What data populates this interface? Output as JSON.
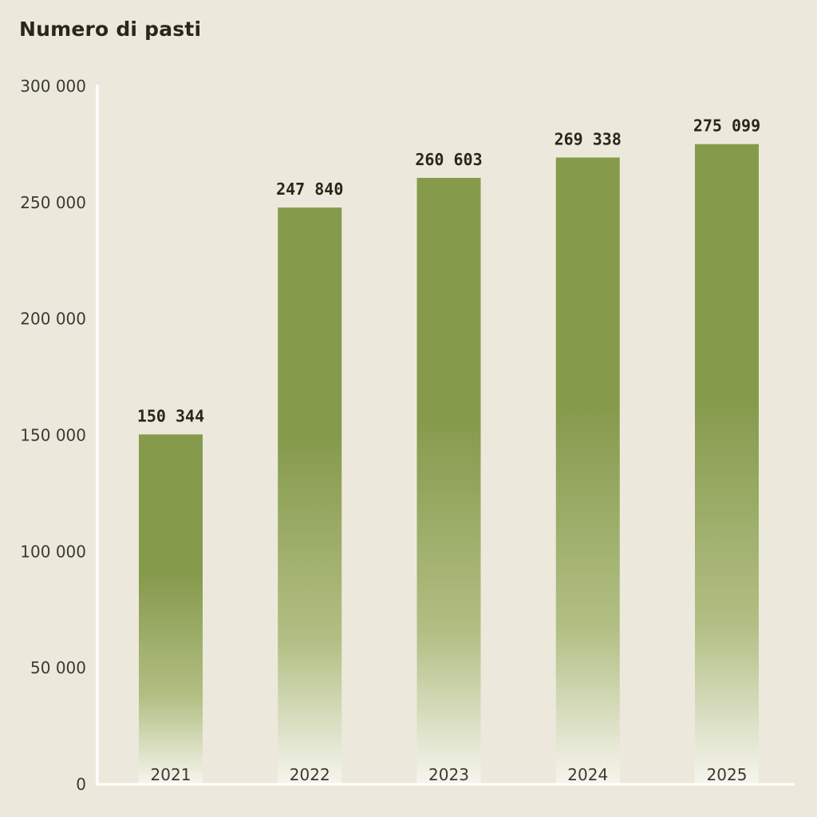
{
  "chart_data": {
    "type": "bar",
    "title": "Numero di pasti",
    "xlabel": "",
    "ylabel": "",
    "categories": [
      "2021",
      "2022",
      "2023",
      "2024",
      "2025"
    ],
    "values": [
      150344,
      247840,
      260603,
      269338,
      275099
    ],
    "value_labels": [
      "150 344",
      "247 840",
      "260 603",
      "269 338",
      "275 099"
    ],
    "ylim": [
      0,
      300000
    ],
    "y_ticks": [
      0,
      50000,
      100000,
      150000,
      200000,
      250000,
      300000
    ],
    "y_tick_labels": [
      "0",
      "50 000",
      "100 000",
      "150 000",
      "200 000",
      "250 000",
      "300 000"
    ],
    "grid": false,
    "legend": "none"
  },
  "colors": {
    "background": "#ece9dc",
    "bar_top": "#869a4c",
    "bar_bottom": "#f6f5ee",
    "axis": "#ffffff",
    "text": "#3a3a33",
    "title": "#2b2616"
  }
}
